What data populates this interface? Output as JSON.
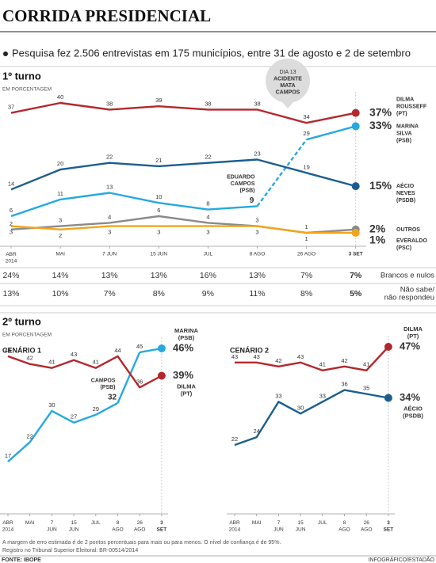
{
  "title": "CORRIDA PRESIDENCIAL",
  "lead": "Pesquisa fez 2.506 entrevistas em 175 municípios, entre 31 de agosto e 2 de setembro",
  "first_round": {
    "heading": "1º turno",
    "unit": "EM PORCENTAGEM"
  },
  "second_round": {
    "heading": "2º turno",
    "unit": "EM PORCENTAGEM"
  },
  "chart_data": [
    {
      "type": "line",
      "categories": [
        "ABR 2014",
        "MAI",
        "7 JUN",
        "15 JUN",
        "JUL",
        "8 AGO",
        "26 AGO",
        "3 SET"
      ],
      "callout": [
        "DIA 13",
        "ACIDENTE",
        "MATA",
        "CAMPOS"
      ],
      "series": [
        {
          "name": "DILMA ROUSSEFF (PT)",
          "color": "#b3282d",
          "values": [
            37,
            40,
            38,
            39,
            38,
            38,
            34,
            37
          ],
          "value_labels": [
            "37",
            "40",
            "38",
            "39",
            "38",
            "38",
            "34",
            "37%"
          ]
        },
        {
          "name": "MARINA SILVA (PSB)",
          "color": "#25a9e0",
          "values": [
            null,
            null,
            null,
            null,
            null,
            null,
            29,
            33
          ],
          "value_labels": [
            null,
            null,
            null,
            null,
            null,
            null,
            "29",
            "33%"
          ]
        },
        {
          "name": "EDUARDO CAMPOS (PSB)",
          "color": "#25a9e0",
          "values": [
            6,
            11,
            13,
            10,
            8,
            9,
            null,
            null
          ],
          "value_labels": [
            "6",
            "11",
            "13",
            "10",
            "8",
            "9",
            null,
            null
          ]
        },
        {
          "name": "AÉCIO NEVES (PSDB)",
          "color": "#1b5e8e",
          "values": [
            14,
            20,
            22,
            21,
            22,
            23,
            19,
            15
          ],
          "value_labels": [
            "14",
            "20",
            "22",
            "21",
            "22",
            "23",
            "19",
            "15%"
          ]
        },
        {
          "name": "OUTROS",
          "color": "#8a8a8a",
          "values": [
            2,
            3,
            4,
            6,
            4,
            3,
            1,
            2
          ],
          "value_labels": [
            "2",
            "3",
            "4",
            "6",
            "4",
            "3",
            "1",
            "2%"
          ]
        },
        {
          "name": "EVERALDO (PSC)",
          "color": "#f2a51a",
          "values": [
            3,
            2,
            3,
            3,
            3,
            3,
            1,
            1
          ],
          "value_labels": [
            "3",
            "2",
            "3",
            "3",
            "3",
            "3",
            "1",
            "1%"
          ]
        }
      ]
    },
    {
      "type": "line",
      "title": "CENÁRIO 1",
      "categories": [
        "ABR 2014",
        "MAI",
        "7 JUN",
        "15 JUN",
        "JUL",
        "8 AGO",
        "26 AGO",
        "3 SET"
      ],
      "series": [
        {
          "name": "DILMA (PT)",
          "color": "#b3282d",
          "values": [
            44,
            42,
            41,
            43,
            41,
            44,
            36,
            39
          ],
          "value_labels": [
            "44",
            "42",
            "41",
            "43",
            "41",
            "44",
            "36",
            "39%"
          ]
        },
        {
          "name": "MARINA (PSB)",
          "color": "#25a9e0",
          "values": [
            null,
            null,
            null,
            null,
            null,
            null,
            45,
            46
          ],
          "value_labels": [
            null,
            null,
            null,
            null,
            null,
            null,
            "45",
            "46%"
          ]
        },
        {
          "name": "CAMPOS (PSB)",
          "color": "#25a9e0",
          "values": [
            17,
            22,
            30,
            27,
            29,
            32,
            null,
            null
          ],
          "value_labels": [
            "17",
            "22",
            "30",
            "27",
            "29",
            "32",
            null,
            null
          ]
        }
      ]
    },
    {
      "type": "line",
      "title": "CENÁRIO 2",
      "categories": [
        "ABR 2014",
        "MAI",
        "7 JUN",
        "15 JUN",
        "JUL",
        "8 AGO",
        "26 AGO",
        "3 SET"
      ],
      "series": [
        {
          "name": "DILMA (PT)",
          "color": "#b3282d",
          "values": [
            43,
            43,
            42,
            43,
            41,
            42,
            41,
            47
          ],
          "value_labels": [
            "43",
            "43",
            "42",
            "43",
            "41",
            "42",
            "41",
            "47%"
          ]
        },
        {
          "name": "AÉCIO (PSDB)",
          "color": "#1b5e8e",
          "values": [
            22,
            24,
            33,
            30,
            33,
            36,
            35,
            34
          ],
          "value_labels": [
            "22",
            "24",
            "33",
            "30",
            "33",
            "36",
            "35",
            "34%"
          ]
        }
      ]
    }
  ],
  "table": {
    "rows": [
      {
        "cells": [
          "24%",
          "14%",
          "13%",
          "13%",
          "16%",
          "13%",
          "7%",
          "7%"
        ],
        "label": [
          "Brancos e nulos"
        ]
      },
      {
        "cells": [
          "13%",
          "10%",
          "7%",
          "8%",
          "9%",
          "11%",
          "8%",
          "5%"
        ],
        "label": [
          "Não sabe/",
          "não respondeu"
        ]
      }
    ]
  },
  "notes": [
    "A margem de erro estimada é de 2 pontos percentuais para mais ou para menos. O nível de confiança é de 95%.",
    "Registro no Tribunal Superior Eleitoral: BR-00514/2014"
  ],
  "source": "FONTE: IBOPE",
  "credit": "INFOGRÁFICO/ESTADÃO"
}
